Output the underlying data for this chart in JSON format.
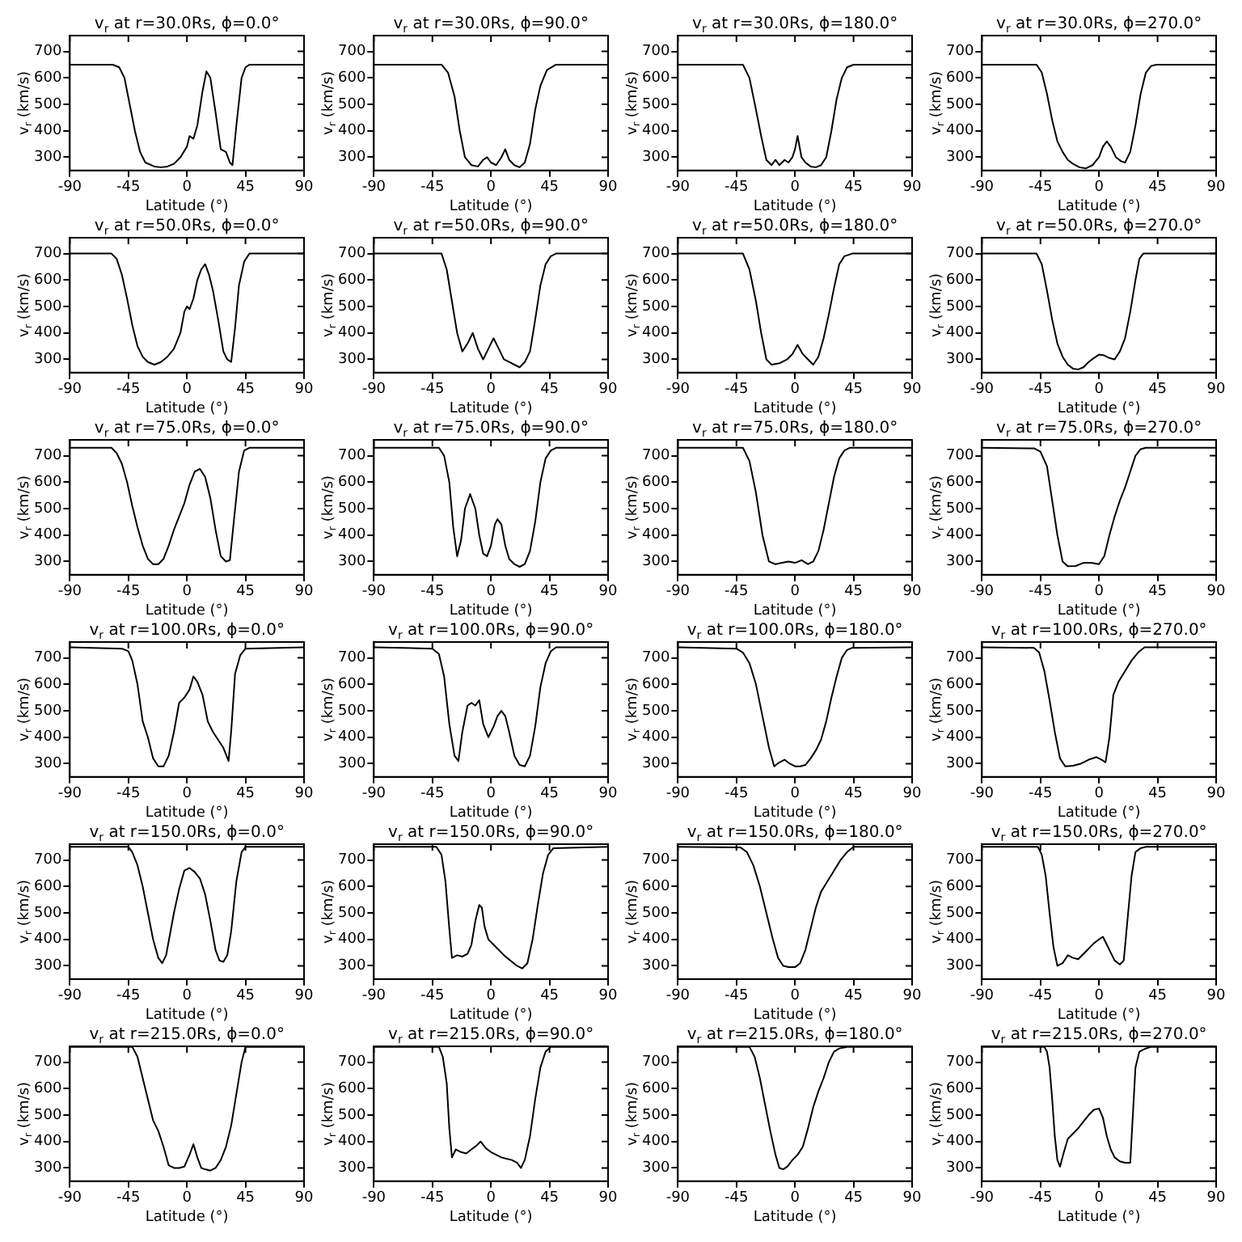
{
  "chart_data": [
    {
      "type": "line",
      "title": "v$_{r}$ at r=30.0Rs, ϕ=0.0°",
      "xlabel": "Latitude (°)",
      "ylabel": "v$_{r}$ (km/s)",
      "xlim": [
        -90,
        90
      ],
      "xticks": [
        -90,
        -45,
        0,
        45,
        90
      ],
      "ylim": [
        250,
        760
      ],
      "yticks": [
        300,
        400,
        500,
        600,
        700
      ],
      "grid": false,
      "legend": false,
      "marker": "none",
      "color": "#000000",
      "x": [
        -90,
        -57,
        -52,
        -48,
        -44,
        -40,
        -36,
        -32,
        -25,
        -20,
        -15,
        -10,
        -5,
        0,
        2,
        5,
        8,
        12,
        15,
        18,
        22,
        26,
        30,
        33,
        35,
        38,
        42,
        45,
        48,
        90
      ],
      "values": [
        650,
        650,
        640,
        600,
        500,
        400,
        320,
        280,
        265,
        262,
        265,
        275,
        300,
        340,
        380,
        370,
        420,
        550,
        625,
        600,
        470,
        330,
        320,
        280,
        270,
        420,
        600,
        640,
        650,
        650
      ]
    },
    {
      "type": "line",
      "title": "v$_{r}$ at r=30.0Rs, ϕ=90.0°",
      "xlabel": "Latitude (°)",
      "ylabel": "v$_{r}$ (km/s)",
      "xlim": [
        -90,
        90
      ],
      "xticks": [
        -90,
        -45,
        0,
        45,
        90
      ],
      "ylim": [
        250,
        760
      ],
      "yticks": [
        300,
        400,
        500,
        600,
        700
      ],
      "grid": false,
      "legend": false,
      "marker": "none",
      "color": "#000000",
      "x": [
        -90,
        -38,
        -33,
        -28,
        -24,
        -20,
        -15,
        -10,
        -6,
        -3,
        0,
        4,
        8,
        11,
        14,
        18,
        22,
        26,
        30,
        34,
        38,
        43,
        50,
        90
      ],
      "values": [
        650,
        650,
        620,
        530,
        400,
        300,
        270,
        265,
        290,
        300,
        280,
        270,
        300,
        330,
        290,
        270,
        262,
        280,
        350,
        480,
        570,
        630,
        650,
        650
      ]
    },
    {
      "type": "line",
      "title": "v$_{r}$ at r=30.0Rs, ϕ=180.0°",
      "xlabel": "Latitude (°)",
      "ylabel": "v$_{r}$ (km/s)",
      "xlim": [
        -90,
        90
      ],
      "xticks": [
        -90,
        -45,
        0,
        45,
        90
      ],
      "ylim": [
        250,
        760
      ],
      "yticks": [
        300,
        400,
        500,
        600,
        700
      ],
      "grid": false,
      "legend": false,
      "marker": "none",
      "color": "#000000",
      "x": [
        -90,
        -40,
        -35,
        -30,
        -26,
        -22,
        -18,
        -15,
        -12,
        -8,
        -5,
        -2,
        0,
        2,
        5,
        8,
        12,
        16,
        20,
        24,
        28,
        32,
        36,
        40,
        45,
        90
      ],
      "values": [
        650,
        650,
        600,
        480,
        380,
        290,
        270,
        290,
        270,
        290,
        280,
        300,
        330,
        380,
        300,
        280,
        265,
        262,
        270,
        300,
        400,
        520,
        600,
        640,
        650,
        650
      ]
    },
    {
      "type": "line",
      "title": "v$_{r}$ at r=30.0Rs, ϕ=270.0°",
      "xlabel": "Latitude (°)",
      "ylabel": "v$_{r}$ (km/s)",
      "xlim": [
        -90,
        90
      ],
      "xticks": [
        -90,
        -45,
        0,
        45,
        90
      ],
      "ylim": [
        250,
        760
      ],
      "yticks": [
        300,
        400,
        500,
        600,
        700
      ],
      "grid": false,
      "legend": false,
      "marker": "none",
      "color": "#000000",
      "x": [
        -90,
        -48,
        -44,
        -40,
        -36,
        -32,
        -28,
        -24,
        -20,
        -15,
        -10,
        -5,
        0,
        3,
        6,
        9,
        13,
        17,
        20,
        24,
        28,
        32,
        36,
        40,
        44,
        90
      ],
      "values": [
        650,
        650,
        620,
        540,
        440,
        360,
        320,
        290,
        275,
        262,
        258,
        270,
        300,
        340,
        360,
        340,
        300,
        285,
        280,
        320,
        420,
        540,
        620,
        645,
        650,
        650
      ]
    },
    {
      "type": "line",
      "title": "v$_{r}$ at r=50.0Rs, ϕ=0.0°",
      "xlabel": "Latitude (°)",
      "ylabel": "v$_{r}$ (km/s)",
      "xlim": [
        -90,
        90
      ],
      "xticks": [
        -90,
        -45,
        0,
        45,
        90
      ],
      "ylim": [
        250,
        760
      ],
      "yticks": [
        300,
        400,
        500,
        600,
        700
      ],
      "grid": false,
      "legend": false,
      "marker": "none",
      "color": "#000000",
      "x": [
        -90,
        -58,
        -54,
        -50,
        -46,
        -42,
        -38,
        -34,
        -30,
        -25,
        -20,
        -15,
        -10,
        -5,
        -2,
        0,
        2,
        5,
        8,
        11,
        14,
        17,
        20,
        24,
        28,
        31,
        34,
        37,
        40,
        44,
        48,
        90
      ],
      "values": [
        700,
        700,
        680,
        620,
        530,
        430,
        350,
        310,
        290,
        280,
        290,
        310,
        340,
        400,
        480,
        500,
        490,
        530,
        600,
        640,
        660,
        620,
        560,
        450,
        330,
        300,
        290,
        420,
        580,
        670,
        700,
        700
      ]
    },
    {
      "type": "line",
      "title": "v$_{r}$ at r=50.0Rs, ϕ=90.0°",
      "xlabel": "Latitude (°)",
      "ylabel": "v$_{r}$ (km/s)",
      "xlim": [
        -90,
        90
      ],
      "xticks": [
        -90,
        -45,
        0,
        45,
        90
      ],
      "ylim": [
        250,
        760
      ],
      "yticks": [
        300,
        400,
        500,
        600,
        700
      ],
      "grid": false,
      "legend": false,
      "marker": "none",
      "color": "#000000",
      "x": [
        -90,
        -38,
        -34,
        -30,
        -26,
        -22,
        -18,
        -14,
        -10,
        -6,
        -2,
        2,
        6,
        10,
        14,
        18,
        22,
        26,
        30,
        34,
        38,
        42,
        46,
        50,
        90
      ],
      "values": [
        700,
        700,
        640,
        520,
        400,
        330,
        360,
        400,
        340,
        300,
        340,
        380,
        340,
        300,
        290,
        280,
        270,
        290,
        330,
        450,
        580,
        660,
        690,
        700,
        700
      ]
    },
    {
      "type": "line",
      "title": "v$_{r}$ at r=50.0Rs, ϕ=180.0°",
      "xlabel": "Latitude (°)",
      "ylabel": "v$_{r}$ (km/s)",
      "xlim": [
        -90,
        90
      ],
      "xticks": [
        -90,
        -45,
        0,
        45,
        90
      ],
      "ylim": [
        250,
        760
      ],
      "yticks": [
        300,
        400,
        500,
        600,
        700
      ],
      "grid": false,
      "legend": false,
      "marker": "none",
      "color": "#000000",
      "x": [
        -90,
        -40,
        -35,
        -30,
        -26,
        -22,
        -18,
        -12,
        -6,
        -2,
        2,
        6,
        10,
        14,
        18,
        22,
        26,
        30,
        34,
        38,
        44,
        90
      ],
      "values": [
        700,
        700,
        640,
        520,
        400,
        300,
        280,
        285,
        300,
        320,
        355,
        320,
        300,
        280,
        310,
        380,
        470,
        570,
        660,
        690,
        700,
        700
      ]
    },
    {
      "type": "line",
      "title": "v$_{r}$ at r=50.0Rs, ϕ=270.0°",
      "xlabel": "Latitude (°)",
      "ylabel": "v$_{r}$ (km/s)",
      "xlim": [
        -90,
        90
      ],
      "xticks": [
        -90,
        -45,
        0,
        45,
        90
      ],
      "ylim": [
        250,
        760
      ],
      "yticks": [
        300,
        400,
        500,
        600,
        700
      ],
      "grid": false,
      "legend": false,
      "marker": "none",
      "color": "#000000",
      "x": [
        -90,
        -48,
        -44,
        -40,
        -36,
        -32,
        -28,
        -24,
        -20,
        -16,
        -12,
        -8,
        -4,
        0,
        4,
        8,
        12,
        16,
        20,
        24,
        28,
        31,
        34,
        90
      ],
      "values": [
        700,
        700,
        660,
        560,
        450,
        360,
        310,
        280,
        265,
        262,
        270,
        290,
        305,
        318,
        315,
        305,
        300,
        330,
        380,
        480,
        600,
        680,
        700,
        700
      ]
    },
    {
      "type": "line",
      "title": "v$_{r}$ at r=75.0Rs, ϕ=0.0°",
      "xlabel": "Latitude (°)",
      "ylabel": "v$_{r}$ (km/s)",
      "xlim": [
        -90,
        90
      ],
      "xticks": [
        -90,
        -45,
        0,
        45,
        90
      ],
      "ylim": [
        250,
        760
      ],
      "yticks": [
        300,
        400,
        500,
        600,
        700
      ],
      "grid": false,
      "legend": false,
      "marker": "none",
      "color": "#000000",
      "x": [
        -90,
        -58,
        -54,
        -50,
        -46,
        -42,
        -38,
        -34,
        -30,
        -26,
        -22,
        -18,
        -14,
        -10,
        -6,
        -2,
        2,
        6,
        10,
        14,
        18,
        22,
        26,
        30,
        33,
        36,
        40,
        44,
        48,
        90
      ],
      "values": [
        730,
        730,
        710,
        670,
        600,
        510,
        430,
        360,
        310,
        290,
        290,
        310,
        360,
        420,
        470,
        520,
        590,
        640,
        650,
        620,
        540,
        420,
        320,
        300,
        305,
        450,
        640,
        720,
        730,
        730
      ]
    },
    {
      "type": "line",
      "title": "v$_{r}$ at r=75.0Rs, ϕ=90.0°",
      "xlabel": "Latitude (°)",
      "ylabel": "v$_{r}$ (km/s)",
      "xlim": [
        -90,
        90
      ],
      "xticks": [
        -90,
        -45,
        0,
        45,
        90
      ],
      "ylim": [
        250,
        760
      ],
      "yticks": [
        300,
        400,
        500,
        600,
        700
      ],
      "grid": false,
      "legend": false,
      "marker": "none",
      "color": "#000000",
      "x": [
        -90,
        -40,
        -36,
        -32,
        -29,
        -26,
        -23,
        -20,
        -16,
        -12,
        -9,
        -6,
        -3,
        0,
        3,
        5,
        8,
        11,
        14,
        18,
        22,
        26,
        30,
        34,
        38,
        42,
        46,
        50,
        90
      ],
      "values": [
        730,
        730,
        700,
        600,
        430,
        320,
        380,
        500,
        555,
        500,
        400,
        330,
        320,
        360,
        440,
        460,
        440,
        360,
        310,
        290,
        280,
        290,
        340,
        450,
        600,
        690,
        720,
        730,
        730
      ]
    },
    {
      "type": "line",
      "title": "v$_{r}$ at r=75.0Rs, ϕ=180.0°",
      "xlabel": "Latitude (°)",
      "ylabel": "v$_{r}$ (km/s)",
      "xlim": [
        -90,
        90
      ],
      "xticks": [
        -90,
        -45,
        0,
        45,
        90
      ],
      "ylim": [
        250,
        760
      ],
      "yticks": [
        300,
        400,
        500,
        600,
        700
      ],
      "grid": false,
      "legend": false,
      "marker": "none",
      "color": "#000000",
      "x": [
        -90,
        -40,
        -35,
        -30,
        -25,
        -20,
        -15,
        -10,
        -5,
        0,
        5,
        10,
        14,
        18,
        22,
        26,
        30,
        34,
        38,
        42,
        90
      ],
      "values": [
        730,
        730,
        680,
        560,
        400,
        300,
        290,
        295,
        300,
        295,
        305,
        290,
        300,
        340,
        420,
        520,
        620,
        690,
        720,
        730,
        730
      ]
    },
    {
      "type": "line",
      "title": "v$_{r}$ at r=75.0Rs, ϕ=270.0°",
      "xlabel": "Latitude (°)",
      "ylabel": "v$_{r}$ (km/s)",
      "xlim": [
        -90,
        90
      ],
      "xticks": [
        -90,
        -45,
        0,
        45,
        90
      ],
      "ylim": [
        250,
        760
      ],
      "yticks": [
        300,
        400,
        500,
        600,
        700
      ],
      "grid": false,
      "legend": false,
      "marker": "none",
      "color": "#000000",
      "x": [
        -90,
        -50,
        -45,
        -40,
        -36,
        -32,
        -28,
        -24,
        -18,
        -12,
        -6,
        0,
        4,
        8,
        12,
        16,
        20,
        24,
        28,
        32,
        36,
        90
      ],
      "values": [
        730,
        728,
        715,
        660,
        530,
        400,
        300,
        282,
        283,
        295,
        295,
        290,
        320,
        400,
        470,
        530,
        580,
        640,
        700,
        725,
        730,
        730
      ]
    },
    {
      "type": "line",
      "title": "v$_{r}$ at r=100.0Rs, ϕ=0.0°",
      "xlabel": "Latitude (°)",
      "ylabel": "v$_{r}$ (km/s)",
      "xlim": [
        -90,
        90
      ],
      "xticks": [
        -90,
        -45,
        0,
        45,
        90
      ],
      "ylim": [
        250,
        760
      ],
      "yticks": [
        300,
        400,
        500,
        600,
        700
      ],
      "grid": false,
      "legend": false,
      "marker": "none",
      "color": "#000000",
      "x": [
        -90,
        -50,
        -45,
        -42,
        -38,
        -34,
        -30,
        -26,
        -22,
        -18,
        -14,
        -10,
        -6,
        -2,
        2,
        5,
        8,
        12,
        16,
        20,
        24,
        28,
        32,
        34,
        37,
        41,
        45,
        90
      ],
      "values": [
        740,
        735,
        725,
        690,
        600,
        460,
        400,
        320,
        290,
        290,
        330,
        420,
        530,
        550,
        580,
        630,
        610,
        560,
        460,
        420,
        390,
        360,
        310,
        420,
        640,
        710,
        735,
        740
      ]
    },
    {
      "type": "line",
      "title": "v$_{r}$ at r=100.0Rs, ϕ=90.0°",
      "xlabel": "Latitude (°)",
      "ylabel": "v$_{r}$ (km/s)",
      "xlim": [
        -90,
        90
      ],
      "xticks": [
        -90,
        -45,
        0,
        45,
        90
      ],
      "ylim": [
        250,
        760
      ],
      "yticks": [
        300,
        400,
        500,
        600,
        700
      ],
      "grid": false,
      "legend": false,
      "marker": "none",
      "color": "#000000",
      "x": [
        -90,
        -45,
        -40,
        -36,
        -32,
        -28,
        -25,
        -22,
        -18,
        -15,
        -12,
        -9,
        -6,
        -2,
        2,
        5,
        8,
        11,
        14,
        18,
        22,
        26,
        30,
        34,
        38,
        42,
        46,
        50,
        90
      ],
      "values": [
        740,
        735,
        715,
        630,
        450,
        330,
        310,
        420,
        520,
        530,
        520,
        540,
        450,
        400,
        440,
        480,
        500,
        480,
        420,
        330,
        295,
        290,
        330,
        440,
        590,
        680,
        725,
        740,
        740
      ]
    },
    {
      "type": "line",
      "title": "v$_{r}$ at r=100.0Rs, ϕ=180.0°",
      "xlabel": "Latitude (°)",
      "ylabel": "v$_{r}$ (km/s)",
      "xlim": [
        -90,
        90
      ],
      "xticks": [
        -90,
        -45,
        0,
        45,
        90
      ],
      "ylim": [
        250,
        760
      ],
      "yticks": [
        300,
        400,
        500,
        600,
        700
      ],
      "grid": false,
      "legend": false,
      "marker": "none",
      "color": "#000000",
      "x": [
        -90,
        -45,
        -40,
        -35,
        -30,
        -25,
        -20,
        -16,
        -12,
        -8,
        -4,
        0,
        4,
        8,
        12,
        16,
        20,
        24,
        28,
        32,
        36,
        40,
        44,
        90
      ],
      "values": [
        740,
        735,
        720,
        680,
        600,
        480,
        360,
        290,
        305,
        315,
        300,
        290,
        290,
        295,
        320,
        350,
        390,
        460,
        550,
        630,
        700,
        730,
        738,
        740
      ]
    },
    {
      "type": "line",
      "title": "v$_{r}$ at r=100.0Rs, ϕ=270.0°",
      "xlabel": "Latitude (°)",
      "ylabel": "v$_{r}$ (km/s)",
      "xlim": [
        -90,
        90
      ],
      "xticks": [
        -90,
        -45,
        0,
        45,
        90
      ],
      "ylim": [
        250,
        760
      ],
      "yticks": [
        300,
        400,
        500,
        600,
        700
      ],
      "grid": false,
      "legend": false,
      "marker": "none",
      "color": "#000000",
      "x": [
        -90,
        -50,
        -46,
        -42,
        -38,
        -34,
        -30,
        -26,
        -20,
        -14,
        -8,
        -2,
        2,
        5,
        8,
        11,
        15,
        20,
        25,
        30,
        35,
        90
      ],
      "values": [
        740,
        738,
        720,
        650,
        540,
        420,
        320,
        290,
        292,
        300,
        315,
        325,
        315,
        305,
        400,
        560,
        610,
        650,
        690,
        720,
        740,
        740
      ]
    },
    {
      "type": "line",
      "title": "v$_{r}$ at r=150.0Rs, ϕ=0.0°",
      "xlabel": "Latitude (°)",
      "ylabel": "v$_{r}$ (km/s)",
      "xlim": [
        -90,
        90
      ],
      "xticks": [
        -90,
        -45,
        0,
        45,
        90
      ],
      "ylim": [
        250,
        760
      ],
      "yticks": [
        300,
        400,
        500,
        600,
        700
      ],
      "grid": false,
      "legend": false,
      "marker": "none",
      "color": "#000000",
      "x": [
        -90,
        -45,
        -42,
        -38,
        -34,
        -30,
        -26,
        -22,
        -19,
        -16,
        -13,
        -10,
        -6,
        -2,
        2,
        6,
        10,
        14,
        18,
        22,
        25,
        28,
        31,
        34,
        38,
        42,
        45,
        90
      ],
      "values": [
        750,
        750,
        730,
        680,
        600,
        500,
        400,
        330,
        310,
        340,
        420,
        500,
        590,
        660,
        670,
        655,
        630,
        570,
        470,
        360,
        320,
        315,
        340,
        430,
        620,
        730,
        750,
        750
      ]
    },
    {
      "type": "line",
      "title": "v$_{r}$ at r=150.0Rs, ϕ=90.0°",
      "xlabel": "Latitude (°)",
      "ylabel": "v$_{r}$ (km/s)",
      "xlim": [
        -90,
        90
      ],
      "xticks": [
        -90,
        -45,
        0,
        45,
        90
      ],
      "ylim": [
        250,
        760
      ],
      "yticks": [
        300,
        400,
        500,
        600,
        700
      ],
      "grid": false,
      "legend": false,
      "marker": "none",
      "color": "#000000",
      "x": [
        -90,
        -42,
        -38,
        -35,
        -32,
        -30,
        -26,
        -22,
        -18,
        -15,
        -12,
        -9,
        -7,
        -5,
        -2,
        2,
        6,
        10,
        15,
        20,
        24,
        28,
        32,
        36,
        40,
        44,
        48,
        90
      ],
      "values": [
        750,
        750,
        720,
        620,
        440,
        330,
        340,
        335,
        345,
        380,
        470,
        530,
        520,
        450,
        400,
        380,
        360,
        340,
        320,
        300,
        290,
        310,
        400,
        530,
        650,
        720,
        745,
        750
      ]
    },
    {
      "type": "line",
      "title": "v$_{r}$ at r=150.0Rs, ϕ=180.0°",
      "xlabel": "Latitude (°)",
      "ylabel": "v$_{r}$ (km/s)",
      "xlim": [
        -90,
        90
      ],
      "xticks": [
        -90,
        -45,
        0,
        45,
        90
      ],
      "ylim": [
        250,
        760
      ],
      "yticks": [
        300,
        400,
        500,
        600,
        700
      ],
      "grid": false,
      "legend": false,
      "marker": "none",
      "color": "#000000",
      "x": [
        -90,
        -42,
        -37,
        -32,
        -27,
        -22,
        -17,
        -13,
        -9,
        -5,
        0,
        4,
        8,
        12,
        16,
        20,
        25,
        30,
        35,
        40,
        45,
        90
      ],
      "values": [
        750,
        748,
        730,
        680,
        600,
        500,
        400,
        330,
        300,
        295,
        295,
        310,
        360,
        440,
        520,
        580,
        620,
        660,
        700,
        730,
        750,
        750
      ]
    },
    {
      "type": "line",
      "title": "v$_{r}$ at r=150.0Rs, ϕ=270.0°",
      "xlabel": "Latitude (°)",
      "ylabel": "v$_{r}$ (km/s)",
      "xlim": [
        -90,
        90
      ],
      "xticks": [
        -90,
        -45,
        0,
        45,
        90
      ],
      "ylim": [
        250,
        760
      ],
      "yticks": [
        300,
        400,
        500,
        600,
        700
      ],
      "grid": false,
      "legend": false,
      "marker": "none",
      "color": "#000000",
      "x": [
        -90,
        -47,
        -44,
        -41,
        -38,
        -35,
        -32,
        -28,
        -24,
        -20,
        -16,
        -12,
        -8,
        -4,
        0,
        3,
        6,
        9,
        12,
        16,
        19,
        22,
        25,
        28,
        32,
        36,
        90
      ],
      "values": [
        750,
        750,
        720,
        640,
        500,
        370,
        300,
        310,
        340,
        330,
        325,
        345,
        365,
        385,
        400,
        410,
        380,
        350,
        320,
        305,
        320,
        480,
        640,
        730,
        745,
        750,
        750
      ]
    },
    {
      "type": "line",
      "title": "v$_{r}$ at r=215.0Rs, ϕ=0.0°",
      "xlabel": "Latitude (°)",
      "ylabel": "v$_{r}$ (km/s)",
      "xlim": [
        -90,
        90
      ],
      "xticks": [
        -90,
        -45,
        0,
        45,
        90
      ],
      "ylim": [
        250,
        760
      ],
      "yticks": [
        300,
        400,
        500,
        600,
        700
      ],
      "grid": false,
      "legend": false,
      "marker": "none",
      "color": "#000000",
      "x": [
        -90,
        -42,
        -38,
        -34,
        -30,
        -26,
        -22,
        -18,
        -14,
        -10,
        -6,
        -2,
        2,
        5,
        8,
        11,
        14,
        18,
        22,
        26,
        30,
        34,
        38,
        42,
        45,
        90
      ],
      "values": [
        758,
        758,
        720,
        640,
        560,
        480,
        440,
        380,
        310,
        300,
        300,
        305,
        350,
        390,
        340,
        300,
        295,
        290,
        300,
        330,
        380,
        460,
        580,
        700,
        758,
        758
      ]
    },
    {
      "type": "line",
      "title": "v$_{r}$ at r=215.0Rs, ϕ=90.0°",
      "xlabel": "Latitude (°)",
      "ylabel": "v$_{r}$ (km/s)",
      "xlim": [
        -90,
        90
      ],
      "xticks": [
        -90,
        -45,
        0,
        45,
        90
      ],
      "ylim": [
        250,
        760
      ],
      "yticks": [
        300,
        400,
        500,
        600,
        700
      ],
      "grid": false,
      "legend": false,
      "marker": "none",
      "color": "#000000",
      "x": [
        -90,
        -40,
        -37,
        -34,
        -32,
        -30,
        -27,
        -23,
        -19,
        -15,
        -11,
        -8,
        -4,
        0,
        4,
        8,
        12,
        16,
        20,
        23,
        26,
        30,
        34,
        38,
        42,
        46,
        90
      ],
      "values": [
        758,
        758,
        720,
        620,
        450,
        340,
        370,
        360,
        355,
        370,
        385,
        400,
        375,
        360,
        350,
        340,
        335,
        330,
        320,
        300,
        330,
        420,
        560,
        680,
        740,
        758,
        758
      ]
    },
    {
      "type": "line",
      "title": "v$_{r}$ at r=215.0Rs, ϕ=180.0°",
      "xlabel": "Latitude (°)",
      "ylabel": "v$_{r}$ (km/s)",
      "xlim": [
        -90,
        90
      ],
      "xticks": [
        -90,
        -45,
        0,
        45,
        90
      ],
      "ylim": [
        250,
        760
      ],
      "yticks": [
        300,
        400,
        500,
        600,
        700
      ],
      "grid": false,
      "legend": false,
      "marker": "none",
      "color": "#000000",
      "x": [
        -90,
        -35,
        -31,
        -27,
        -23,
        -19,
        -15,
        -12,
        -9,
        -6,
        -2,
        2,
        6,
        10,
        14,
        18,
        22,
        26,
        30,
        34,
        40,
        90
      ],
      "values": [
        758,
        758,
        720,
        640,
        540,
        440,
        350,
        300,
        295,
        305,
        330,
        350,
        380,
        450,
        530,
        590,
        640,
        700,
        740,
        752,
        758,
        758
      ]
    },
    {
      "type": "line",
      "title": "v$_{r}$ at r=215.0Rs, ϕ=270.0°",
      "xlabel": "Latitude (°)",
      "ylabel": "v$_{r}$ (km/s)",
      "xlim": [
        -90,
        90
      ],
      "xticks": [
        -90,
        -45,
        0,
        45,
        90
      ],
      "ylim": [
        250,
        760
      ],
      "yticks": [
        300,
        400,
        500,
        600,
        700
      ],
      "grid": false,
      "legend": false,
      "marker": "none",
      "color": "#000000",
      "x": [
        -90,
        -42,
        -40,
        -38,
        -36,
        -34,
        -32,
        -30,
        -27,
        -24,
        -20,
        -16,
        -12,
        -8,
        -4,
        0,
        3,
        6,
        9,
        12,
        16,
        20,
        24,
        26,
        28,
        31,
        35,
        40,
        90
      ],
      "values": [
        758,
        758,
        740,
        680,
        560,
        420,
        330,
        305,
        360,
        410,
        430,
        450,
        475,
        500,
        520,
        525,
        490,
        420,
        370,
        340,
        325,
        320,
        320,
        500,
        680,
        740,
        750,
        758,
        758
      ]
    }
  ]
}
